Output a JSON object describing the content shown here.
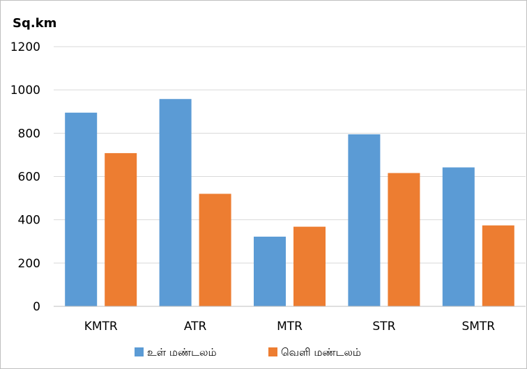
{
  "chart_data": {
    "type": "bar",
    "title": "",
    "ylabel": "Sq.km",
    "xlabel": "",
    "categories": [
      "KMTR",
      "ATR",
      "MTR",
      "STR",
      "SMTR"
    ],
    "series": [
      {
        "name": "உள் மண்டலம்",
        "values": [
          895,
          958,
          322,
          795,
          642
        ],
        "color": "#5B9BD5"
      },
      {
        "name": "வெளி மண்டலம்",
        "values": [
          708,
          520,
          368,
          616,
          374
        ],
        "color": "#ED7D31"
      }
    ],
    "ylim": [
      0,
      1200
    ],
    "yticks": [
      0,
      200,
      400,
      600,
      800,
      1000,
      1200
    ],
    "grid": true,
    "legend_position": "bottom"
  }
}
